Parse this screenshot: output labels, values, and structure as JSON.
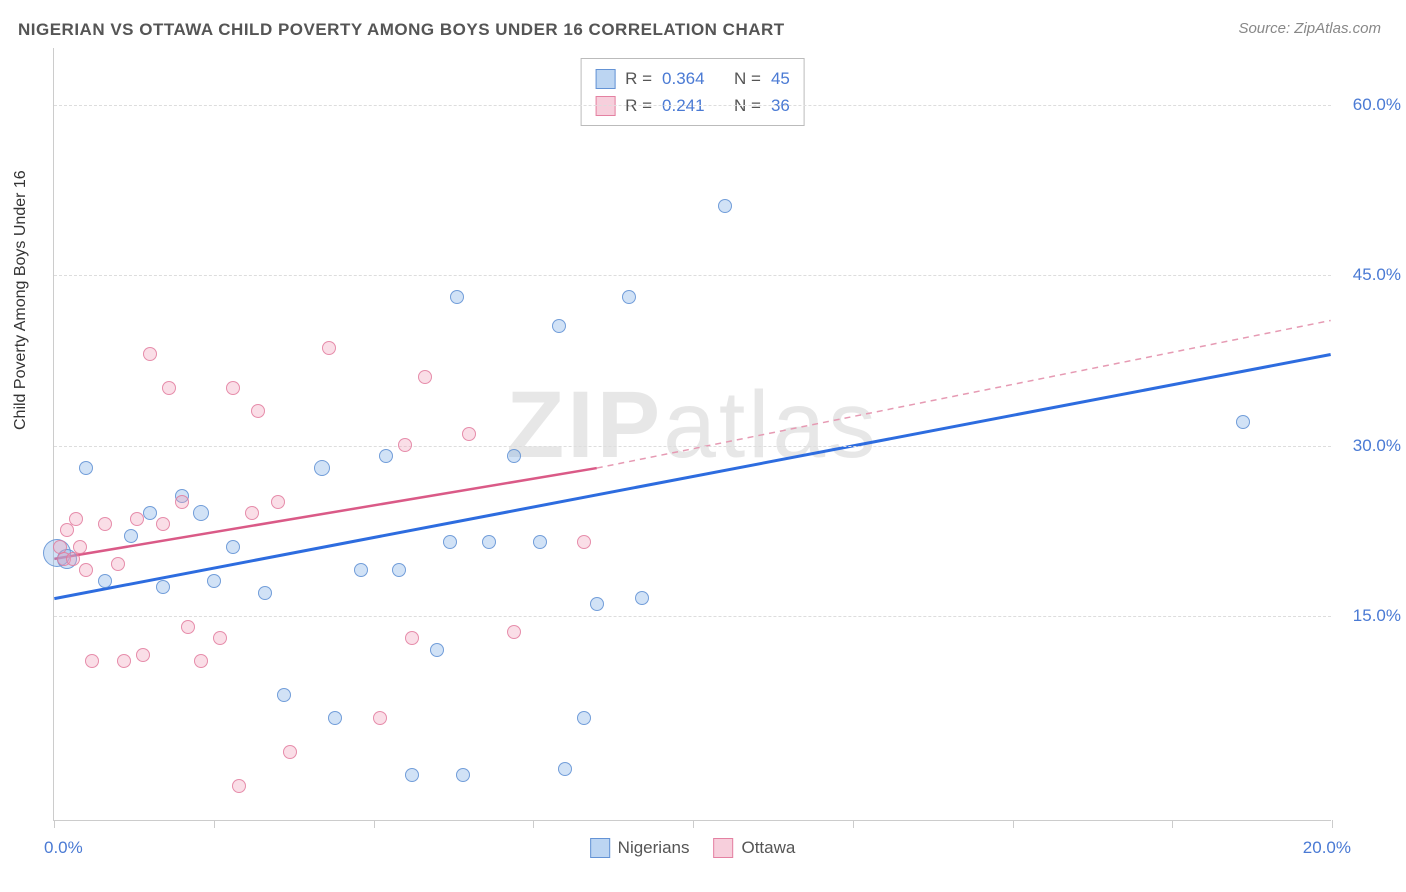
{
  "title": "NIGERIAN VS OTTAWA CHILD POVERTY AMONG BOYS UNDER 16 CORRELATION CHART",
  "source": "Source: ZipAtlas.com",
  "ylabel": "Child Poverty Among Boys Under 16",
  "watermark_a": "ZIP",
  "watermark_b": "atlas",
  "chart": {
    "type": "scatter",
    "background_color": "#ffffff",
    "grid_color": "#dddddd",
    "axis_color": "#cccccc",
    "xlim": [
      0,
      20
    ],
    "ylim": [
      -3,
      65
    ],
    "ytick_values": [
      15,
      30,
      45,
      60
    ],
    "ytick_labels": [
      "15.0%",
      "30.0%",
      "45.0%",
      "60.0%"
    ],
    "xtick_values": [
      0,
      2.5,
      5,
      7.5,
      10,
      12.5,
      15,
      17.5,
      20
    ],
    "xtick_label_left": "0.0%",
    "xtick_label_right": "20.0%",
    "ytick_color": "#4a7ad4",
    "xtick_color": "#4a7ad4",
    "label_fontsize": 16,
    "tick_fontsize": 17,
    "series": [
      {
        "id": "nigerians",
        "label": "Nigerians",
        "marker_color_fill": "rgba(122,171,230,0.35)",
        "marker_color_stroke": "rgba(90,140,210,0.8)",
        "marker_shape": "circle",
        "R": "0.364",
        "N": "45",
        "trend": {
          "solid": {
            "x1": 0,
            "y1": 16.5,
            "x2": 20,
            "y2": 38,
            "color": "#2d6cdf",
            "width": 3
          }
        },
        "points": [
          {
            "x": 0.05,
            "y": 20.5,
            "r": 14
          },
          {
            "x": 0.2,
            "y": 20,
            "r": 10
          },
          {
            "x": 0.5,
            "y": 28,
            "r": 7
          },
          {
            "x": 0.8,
            "y": 18,
            "r": 7
          },
          {
            "x": 1.2,
            "y": 22,
            "r": 7
          },
          {
            "x": 1.5,
            "y": 24,
            "r": 7
          },
          {
            "x": 1.7,
            "y": 17.5,
            "r": 7
          },
          {
            "x": 2.0,
            "y": 25.5,
            "r": 7
          },
          {
            "x": 2.3,
            "y": 24,
            "r": 8
          },
          {
            "x": 2.5,
            "y": 18,
            "r": 7
          },
          {
            "x": 2.8,
            "y": 21,
            "r": 7
          },
          {
            "x": 3.3,
            "y": 17,
            "r": 7
          },
          {
            "x": 3.6,
            "y": 8,
            "r": 7
          },
          {
            "x": 4.2,
            "y": 28,
            "r": 8
          },
          {
            "x": 4.4,
            "y": 6,
            "r": 7
          },
          {
            "x": 4.8,
            "y": 19,
            "r": 7
          },
          {
            "x": 5.2,
            "y": 29,
            "r": 7
          },
          {
            "x": 5.4,
            "y": 19,
            "r": 7
          },
          {
            "x": 5.6,
            "y": 1,
            "r": 7
          },
          {
            "x": 6.0,
            "y": 12,
            "r": 7
          },
          {
            "x": 6.2,
            "y": 21.5,
            "r": 7
          },
          {
            "x": 6.3,
            "y": 43,
            "r": 7
          },
          {
            "x": 6.4,
            "y": 1,
            "r": 7
          },
          {
            "x": 6.8,
            "y": 21.5,
            "r": 7
          },
          {
            "x": 7.2,
            "y": 29,
            "r": 7
          },
          {
            "x": 7.6,
            "y": 21.5,
            "r": 7
          },
          {
            "x": 7.9,
            "y": 40.5,
            "r": 7
          },
          {
            "x": 8.0,
            "y": 1.5,
            "r": 7
          },
          {
            "x": 8.3,
            "y": 6,
            "r": 7
          },
          {
            "x": 8.5,
            "y": 16,
            "r": 7
          },
          {
            "x": 9.0,
            "y": 43,
            "r": 7
          },
          {
            "x": 9.2,
            "y": 16.5,
            "r": 7
          },
          {
            "x": 10.5,
            "y": 51,
            "r": 7
          },
          {
            "x": 18.6,
            "y": 32,
            "r": 7
          }
        ]
      },
      {
        "id": "ottawa",
        "label": "Ottawa",
        "marker_color_fill": "rgba(240,160,185,0.35)",
        "marker_color_stroke": "rgba(225,120,155,0.8)",
        "marker_shape": "circle",
        "R": "0.241",
        "N": "36",
        "trend": {
          "solid": {
            "x1": 0,
            "y1": 20,
            "x2": 8.5,
            "y2": 28,
            "color": "#da5a87",
            "width": 2.5
          },
          "dashed": {
            "x1": 8.5,
            "y1": 28,
            "x2": 20,
            "y2": 41,
            "color": "#e69ab3",
            "width": 1.5
          }
        },
        "points": [
          {
            "x": 0.1,
            "y": 21,
            "r": 7
          },
          {
            "x": 0.15,
            "y": 20,
            "r": 7
          },
          {
            "x": 0.2,
            "y": 22.5,
            "r": 7
          },
          {
            "x": 0.3,
            "y": 20,
            "r": 7
          },
          {
            "x": 0.35,
            "y": 23.5,
            "r": 7
          },
          {
            "x": 0.4,
            "y": 21,
            "r": 7
          },
          {
            "x": 0.5,
            "y": 19,
            "r": 7
          },
          {
            "x": 0.6,
            "y": 11,
            "r": 7
          },
          {
            "x": 0.8,
            "y": 23,
            "r": 7
          },
          {
            "x": 1.0,
            "y": 19.5,
            "r": 7
          },
          {
            "x": 1.1,
            "y": 11,
            "r": 7
          },
          {
            "x": 1.3,
            "y": 23.5,
            "r": 7
          },
          {
            "x": 1.4,
            "y": 11.5,
            "r": 7
          },
          {
            "x": 1.5,
            "y": 38,
            "r": 7
          },
          {
            "x": 1.7,
            "y": 23,
            "r": 7
          },
          {
            "x": 1.8,
            "y": 35,
            "r": 7
          },
          {
            "x": 2.0,
            "y": 25,
            "r": 7
          },
          {
            "x": 2.1,
            "y": 14,
            "r": 7
          },
          {
            "x": 2.3,
            "y": 11,
            "r": 7
          },
          {
            "x": 2.6,
            "y": 13,
            "r": 7
          },
          {
            "x": 2.8,
            "y": 35,
            "r": 7
          },
          {
            "x": 2.9,
            "y": 0,
            "r": 7
          },
          {
            "x": 3.1,
            "y": 24,
            "r": 7
          },
          {
            "x": 3.2,
            "y": 33,
            "r": 7
          },
          {
            "x": 3.5,
            "y": 25,
            "r": 7
          },
          {
            "x": 3.7,
            "y": 3,
            "r": 7
          },
          {
            "x": 4.3,
            "y": 38.5,
            "r": 7
          },
          {
            "x": 5.1,
            "y": 6,
            "r": 7
          },
          {
            "x": 5.5,
            "y": 30,
            "r": 7
          },
          {
            "x": 5.6,
            "y": 13,
            "r": 7
          },
          {
            "x": 5.8,
            "y": 36,
            "r": 7
          },
          {
            "x": 6.5,
            "y": 31,
            "r": 7
          },
          {
            "x": 7.2,
            "y": 13.5,
            "r": 7
          },
          {
            "x": 8.3,
            "y": 21.5,
            "r": 7
          }
        ]
      }
    ],
    "rn_box": {
      "r_label": "R =",
      "n_label": "N ="
    },
    "legend_bottom": true
  }
}
